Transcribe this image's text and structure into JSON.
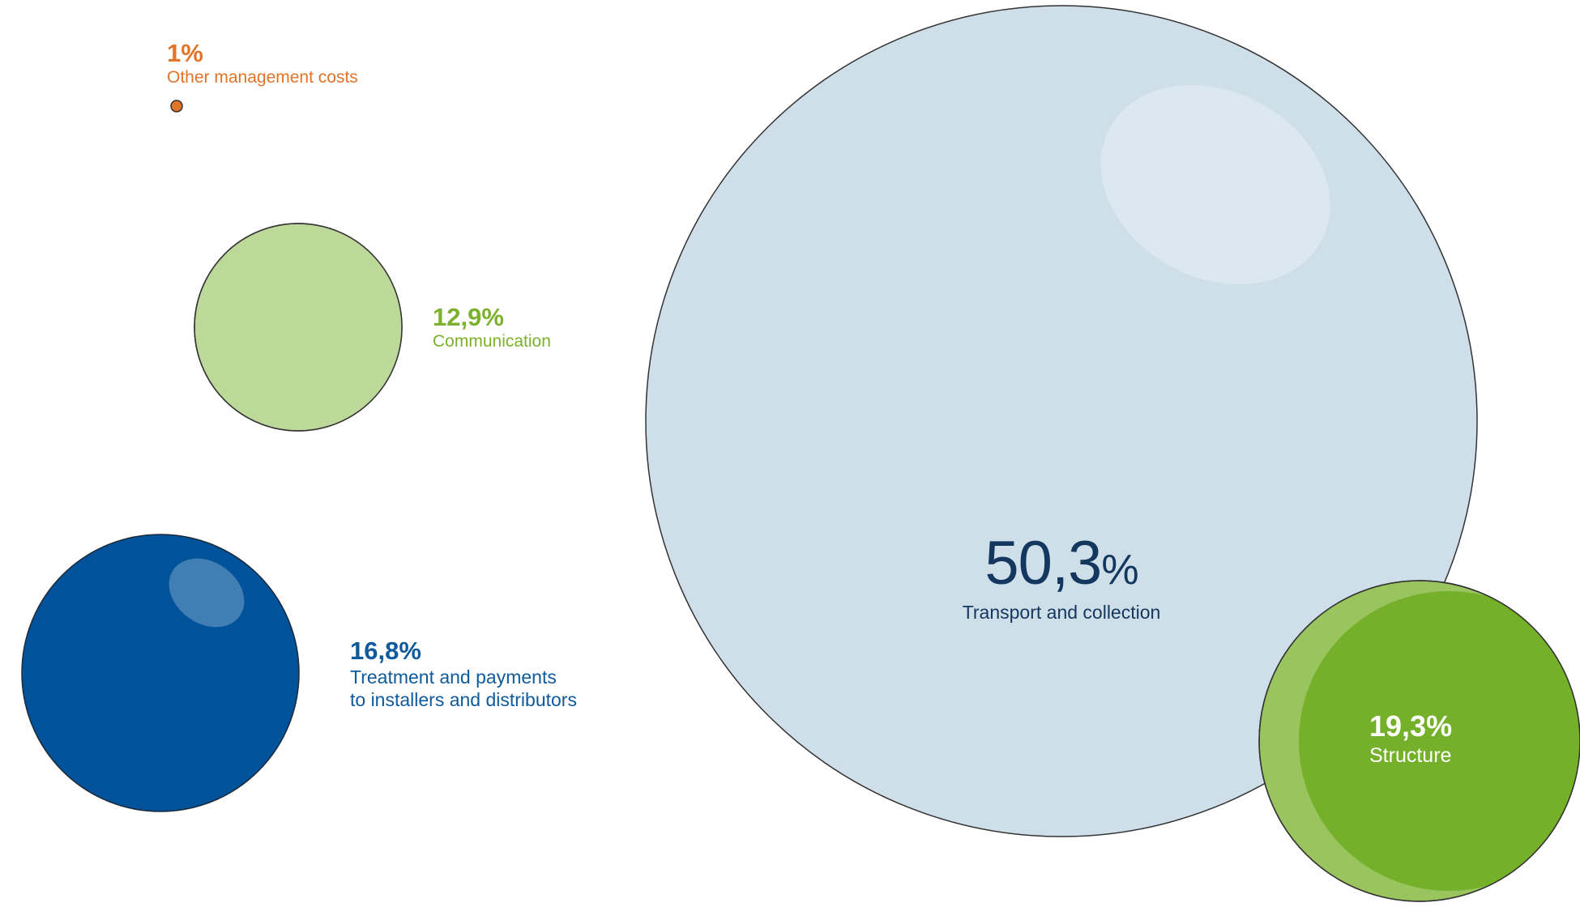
{
  "chart_data": {
    "type": "bubble",
    "unit": "%",
    "series": [
      {
        "key": "other",
        "label": "1%",
        "value": 1.0,
        "name": "Other management costs",
        "color": "#e2742a"
      },
      {
        "key": "communication",
        "label": "12,9%",
        "value": 12.9,
        "name": "Communication",
        "color": "#bcd99a"
      },
      {
        "key": "treatment",
        "label": "16,8%",
        "value": 16.8,
        "name_lines": [
          "Treatment and payments",
          "to installers and distributors"
        ],
        "color": "#00539a"
      },
      {
        "key": "transport",
        "label_number": "50,3",
        "label_symbol": "%",
        "value": 50.3,
        "name": "Transport and collection",
        "color": "#cfdfea"
      },
      {
        "key": "structure",
        "label": "19,3%",
        "value": 19.3,
        "name": "Structure",
        "color": "#74b02a"
      }
    ]
  }
}
